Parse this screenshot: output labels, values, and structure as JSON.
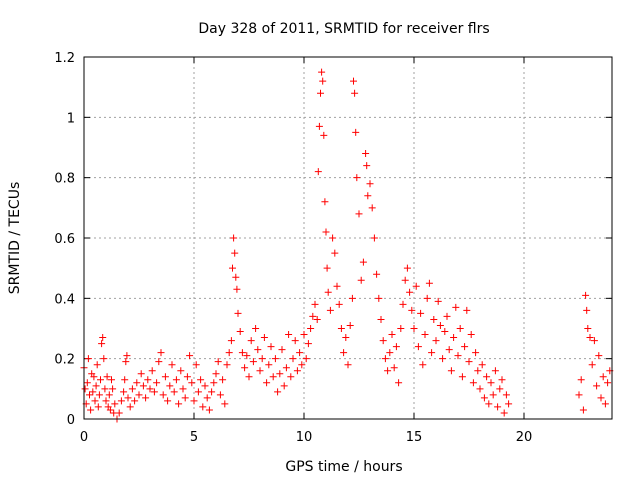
{
  "chart_data": {
    "type": "scatter",
    "title": "Day 328 of 2011, SRMTID for receiver flrs",
    "xlabel": "GPS time / hours",
    "ylabel": "SRMTID / TECUs",
    "xlim": [
      0,
      24
    ],
    "ylim": [
      0,
      1.2
    ],
    "xticks": [
      0,
      5,
      10,
      15,
      20
    ],
    "xtick_labels": [
      "0",
      "5",
      "10",
      "15",
      "20"
    ],
    "yticks": [
      0,
      0.2,
      0.4,
      0.6,
      0.8,
      1.0,
      1.2
    ],
    "ytick_labels": [
      "0",
      "0.2",
      "0.4",
      "0.6",
      "0.8",
      "1",
      "1.2"
    ],
    "grid": true,
    "marker": "+",
    "colors": {
      "series": "#ff0000",
      "grid": "#a0a0a0",
      "frame": "#000000"
    },
    "series": [
      {
        "name": "SRMTID",
        "points": [
          [
            0.0,
            0.17
          ],
          [
            0.05,
            0.1
          ],
          [
            0.1,
            0.05
          ],
          [
            0.15,
            0.12
          ],
          [
            0.2,
            0.2
          ],
          [
            0.25,
            0.08
          ],
          [
            0.3,
            0.03
          ],
          [
            0.35,
            0.15
          ],
          [
            0.4,
            0.09
          ],
          [
            0.45,
            0.14
          ],
          [
            0.5,
            0.06
          ],
          [
            0.55,
            0.11
          ],
          [
            0.6,
            0.18
          ],
          [
            0.65,
            0.04
          ],
          [
            0.7,
            0.08
          ],
          [
            0.75,
            0.13
          ],
          [
            0.8,
            0.25
          ],
          [
            0.85,
            0.27
          ],
          [
            0.9,
            0.2
          ],
          [
            0.95,
            0.1
          ],
          [
            1.0,
            0.06
          ],
          [
            1.05,
            0.14
          ],
          [
            1.1,
            0.04
          ],
          [
            1.15,
            0.08
          ],
          [
            1.2,
            0.03
          ],
          [
            1.25,
            0.13
          ],
          [
            1.3,
            0.1
          ],
          [
            1.35,
            0.02
          ],
          [
            1.4,
            0.05
          ],
          [
            1.5,
            0.0
          ],
          [
            1.6,
            0.02
          ],
          [
            1.7,
            0.06
          ],
          [
            1.8,
            0.09
          ],
          [
            1.85,
            0.13
          ],
          [
            1.9,
            0.19
          ],
          [
            1.95,
            0.21
          ],
          [
            2.0,
            0.07
          ],
          [
            2.1,
            0.04
          ],
          [
            2.2,
            0.1
          ],
          [
            2.3,
            0.06
          ],
          [
            2.4,
            0.12
          ],
          [
            2.5,
            0.08
          ],
          [
            2.6,
            0.15
          ],
          [
            2.7,
            0.11
          ],
          [
            2.8,
            0.07
          ],
          [
            2.9,
            0.13
          ],
          [
            3.0,
            0.1
          ],
          [
            3.1,
            0.16
          ],
          [
            3.2,
            0.09
          ],
          [
            3.3,
            0.12
          ],
          [
            3.4,
            0.19
          ],
          [
            3.5,
            0.22
          ],
          [
            3.6,
            0.08
          ],
          [
            3.7,
            0.14
          ],
          [
            3.8,
            0.06
          ],
          [
            3.9,
            0.11
          ],
          [
            4.0,
            0.18
          ],
          [
            4.1,
            0.09
          ],
          [
            4.2,
            0.13
          ],
          [
            4.3,
            0.05
          ],
          [
            4.4,
            0.16
          ],
          [
            4.5,
            0.1
          ],
          [
            4.6,
            0.07
          ],
          [
            4.7,
            0.14
          ],
          [
            4.8,
            0.21
          ],
          [
            4.9,
            0.12
          ],
          [
            5.0,
            0.06
          ],
          [
            5.1,
            0.18
          ],
          [
            5.2,
            0.09
          ],
          [
            5.3,
            0.13
          ],
          [
            5.4,
            0.04
          ],
          [
            5.5,
            0.11
          ],
          [
            5.6,
            0.07
          ],
          [
            5.7,
            0.03
          ],
          [
            5.8,
            0.09
          ],
          [
            5.9,
            0.12
          ],
          [
            6.0,
            0.15
          ],
          [
            6.1,
            0.19
          ],
          [
            6.2,
            0.08
          ],
          [
            6.3,
            0.13
          ],
          [
            6.4,
            0.05
          ],
          [
            6.5,
            0.18
          ],
          [
            6.6,
            0.22
          ],
          [
            6.7,
            0.26
          ],
          [
            6.75,
            0.5
          ],
          [
            6.8,
            0.6
          ],
          [
            6.85,
            0.55
          ],
          [
            6.9,
            0.47
          ],
          [
            6.95,
            0.43
          ],
          [
            7.0,
            0.35
          ],
          [
            7.1,
            0.29
          ],
          [
            7.2,
            0.22
          ],
          [
            7.3,
            0.17
          ],
          [
            7.4,
            0.21
          ],
          [
            7.5,
            0.14
          ],
          [
            7.6,
            0.26
          ],
          [
            7.7,
            0.19
          ],
          [
            7.8,
            0.3
          ],
          [
            7.9,
            0.23
          ],
          [
            8.0,
            0.16
          ],
          [
            8.1,
            0.2
          ],
          [
            8.2,
            0.27
          ],
          [
            8.3,
            0.12
          ],
          [
            8.4,
            0.18
          ],
          [
            8.5,
            0.24
          ],
          [
            8.6,
            0.14
          ],
          [
            8.7,
            0.2
          ],
          [
            8.8,
            0.09
          ],
          [
            8.9,
            0.15
          ],
          [
            9.0,
            0.23
          ],
          [
            9.1,
            0.11
          ],
          [
            9.2,
            0.17
          ],
          [
            9.3,
            0.28
          ],
          [
            9.4,
            0.14
          ],
          [
            9.5,
            0.2
          ],
          [
            9.6,
            0.26
          ],
          [
            9.7,
            0.16
          ],
          [
            9.8,
            0.22
          ],
          [
            9.9,
            0.18
          ],
          [
            10.0,
            0.28
          ],
          [
            10.1,
            0.2
          ],
          [
            10.2,
            0.25
          ],
          [
            10.3,
            0.3
          ],
          [
            10.4,
            0.34
          ],
          [
            10.5,
            0.38
          ],
          [
            10.6,
            0.33
          ],
          [
            10.65,
            0.82
          ],
          [
            10.7,
            0.97
          ],
          [
            10.75,
            1.08
          ],
          [
            10.8,
            1.15
          ],
          [
            10.85,
            1.12
          ],
          [
            10.9,
            0.94
          ],
          [
            10.95,
            0.72
          ],
          [
            11.0,
            0.62
          ],
          [
            11.05,
            0.5
          ],
          [
            11.1,
            0.42
          ],
          [
            11.2,
            0.36
          ],
          [
            11.3,
            0.6
          ],
          [
            11.4,
            0.55
          ],
          [
            11.5,
            0.44
          ],
          [
            11.6,
            0.38
          ],
          [
            11.7,
            0.3
          ],
          [
            11.8,
            0.22
          ],
          [
            11.9,
            0.27
          ],
          [
            12.0,
            0.18
          ],
          [
            12.1,
            0.31
          ],
          [
            12.2,
            0.4
          ],
          [
            12.25,
            1.12
          ],
          [
            12.3,
            1.08
          ],
          [
            12.35,
            0.95
          ],
          [
            12.4,
            0.8
          ],
          [
            12.5,
            0.68
          ],
          [
            12.6,
            0.46
          ],
          [
            12.7,
            0.52
          ],
          [
            12.8,
            0.88
          ],
          [
            12.85,
            0.84
          ],
          [
            12.9,
            0.74
          ],
          [
            13.0,
            0.78
          ],
          [
            13.1,
            0.7
          ],
          [
            13.2,
            0.6
          ],
          [
            13.3,
            0.48
          ],
          [
            13.4,
            0.4
          ],
          [
            13.5,
            0.33
          ],
          [
            13.6,
            0.26
          ],
          [
            13.7,
            0.2
          ],
          [
            13.8,
            0.16
          ],
          [
            13.9,
            0.22
          ],
          [
            14.0,
            0.28
          ],
          [
            14.1,
            0.17
          ],
          [
            14.2,
            0.24
          ],
          [
            14.3,
            0.12
          ],
          [
            14.4,
            0.3
          ],
          [
            14.5,
            0.38
          ],
          [
            14.6,
            0.46
          ],
          [
            14.7,
            0.5
          ],
          [
            14.8,
            0.42
          ],
          [
            14.9,
            0.36
          ],
          [
            15.0,
            0.3
          ],
          [
            15.1,
            0.44
          ],
          [
            15.2,
            0.24
          ],
          [
            15.3,
            0.35
          ],
          [
            15.4,
            0.18
          ],
          [
            15.5,
            0.28
          ],
          [
            15.6,
            0.4
          ],
          [
            15.7,
            0.45
          ],
          [
            15.8,
            0.22
          ],
          [
            15.9,
            0.33
          ],
          [
            16.0,
            0.26
          ],
          [
            16.1,
            0.39
          ],
          [
            16.2,
            0.31
          ],
          [
            16.3,
            0.2
          ],
          [
            16.4,
            0.29
          ],
          [
            16.5,
            0.34
          ],
          [
            16.6,
            0.23
          ],
          [
            16.7,
            0.16
          ],
          [
            16.8,
            0.27
          ],
          [
            16.9,
            0.37
          ],
          [
            17.0,
            0.21
          ],
          [
            17.1,
            0.3
          ],
          [
            17.2,
            0.14
          ],
          [
            17.3,
            0.24
          ],
          [
            17.4,
            0.36
          ],
          [
            17.5,
            0.19
          ],
          [
            17.6,
            0.28
          ],
          [
            17.7,
            0.12
          ],
          [
            17.8,
            0.22
          ],
          [
            17.9,
            0.16
          ],
          [
            18.0,
            0.1
          ],
          [
            18.1,
            0.18
          ],
          [
            18.2,
            0.07
          ],
          [
            18.3,
            0.14
          ],
          [
            18.4,
            0.05
          ],
          [
            18.5,
            0.12
          ],
          [
            18.6,
            0.08
          ],
          [
            18.7,
            0.16
          ],
          [
            18.8,
            0.04
          ],
          [
            18.9,
            0.1
          ],
          [
            19.0,
            0.13
          ],
          [
            19.1,
            0.02
          ],
          [
            19.2,
            0.08
          ],
          [
            19.3,
            0.05
          ],
          [
            22.5,
            0.08
          ],
          [
            22.6,
            0.13
          ],
          [
            22.7,
            0.03
          ],
          [
            22.8,
            0.41
          ],
          [
            22.85,
            0.36
          ],
          [
            22.9,
            0.3
          ],
          [
            23.0,
            0.27
          ],
          [
            23.1,
            0.18
          ],
          [
            23.2,
            0.26
          ],
          [
            23.3,
            0.11
          ],
          [
            23.4,
            0.21
          ],
          [
            23.5,
            0.07
          ],
          [
            23.6,
            0.14
          ],
          [
            23.7,
            0.05
          ],
          [
            23.8,
            0.12
          ],
          [
            23.9,
            0.16
          ]
        ]
      }
    ]
  }
}
